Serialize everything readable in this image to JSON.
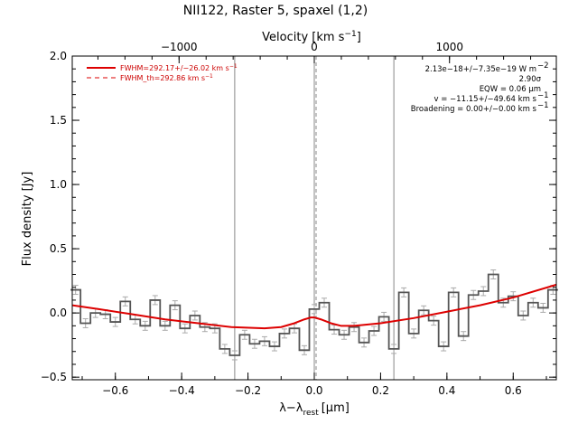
{
  "chart_data": {
    "type": "line",
    "title": "NII122, Raster 5, spaxel (1,2)",
    "xlabel": "λ−λ",
    "xlabel_sub": "rest",
    "xlabel_unit": "[μm]",
    "ylabel": "Flux density [Jy]",
    "top_xlabel": "Velocity [km s",
    "top_xlabel_sup": "−1",
    "top_xlabel_close": "]",
    "xlim": [
      -0.73,
      0.73
    ],
    "ylim": [
      -0.52,
      2.0
    ],
    "top_xlim": [
      -1790,
      1790
    ],
    "x_ticks": [
      -0.6,
      -0.4,
      -0.2,
      0.0,
      0.2,
      0.4,
      0.6
    ],
    "x_tick_labels": [
      "−0.6",
      "−0.4",
      "−0.2",
      "0.0",
      "0.2",
      "0.4",
      "0.6"
    ],
    "y_ticks": [
      -0.5,
      0.0,
      0.5,
      1.0,
      1.5,
      2.0
    ],
    "y_tick_labels": [
      "−0.5",
      "0.0",
      "0.5",
      "1.0",
      "1.5",
      "2.0"
    ],
    "top_ticks": [
      -1000,
      0,
      1000
    ],
    "top_tick_labels": [
      "−1000",
      "0",
      "1000"
    ],
    "vertical_lines": [
      -0.24,
      0.0,
      0.24
    ],
    "rest_line": 0.0,
    "grid": false,
    "legend_placement": "top-left",
    "series": [
      {
        "name": "FWHM=292.17+/−26.02 km s",
        "name_sup": "−1",
        "kind": "fit",
        "color": "#dd0000",
        "x": [
          -0.73,
          -0.65,
          -0.55,
          -0.45,
          -0.35,
          -0.25,
          -0.15,
          -0.1,
          -0.06,
          -0.03,
          -0.01,
          0.0,
          0.02,
          0.05,
          0.08,
          0.12,
          0.2,
          0.3,
          0.4,
          0.5,
          0.6,
          0.73
        ],
        "y": [
          0.06,
          0.03,
          -0.01,
          -0.05,
          -0.08,
          -0.11,
          -0.12,
          -0.11,
          -0.08,
          -0.05,
          -0.035,
          -0.035,
          -0.05,
          -0.08,
          -0.1,
          -0.1,
          -0.08,
          -0.04,
          0.01,
          0.06,
          0.12,
          0.22
        ]
      },
      {
        "name": "FWHM_th=292.86 km s",
        "name_sup": "−1",
        "kind": "reference",
        "color": "#dd0000",
        "dashed": true
      },
      {
        "name": "",
        "kind": "spectrum",
        "color": "#555555",
        "x": [
          -0.72,
          -0.69,
          -0.66,
          -0.63,
          -0.6,
          -0.57,
          -0.54,
          -0.51,
          -0.48,
          -0.45,
          -0.42,
          -0.39,
          -0.36,
          -0.33,
          -0.3,
          -0.27,
          -0.24,
          -0.21,
          -0.18,
          -0.15,
          -0.12,
          -0.09,
          -0.06,
          -0.03,
          0.0,
          0.03,
          0.06,
          0.09,
          0.12,
          0.15,
          0.18,
          0.21,
          0.24,
          0.27,
          0.3,
          0.33,
          0.36,
          0.39,
          0.42,
          0.45,
          0.48,
          0.51,
          0.54,
          0.57,
          0.6,
          0.63,
          0.66,
          0.69,
          0.72
        ],
        "y": [
          0.18,
          -0.08,
          0.0,
          -0.01,
          -0.07,
          0.09,
          -0.05,
          -0.1,
          0.1,
          -0.1,
          0.06,
          -0.12,
          -0.02,
          -0.11,
          -0.12,
          -0.28,
          -0.33,
          -0.17,
          -0.24,
          -0.22,
          -0.26,
          -0.16,
          -0.12,
          -0.29,
          0.03,
          0.08,
          -0.13,
          -0.17,
          -0.11,
          -0.23,
          -0.14,
          -0.03,
          -0.28,
          0.16,
          -0.16,
          0.02,
          -0.06,
          -0.26,
          0.16,
          -0.18,
          0.14,
          0.17,
          0.3,
          0.08,
          0.13,
          -0.02,
          0.08,
          0.04,
          0.18
        ]
      }
    ],
    "annotations": [
      "2.13e−18+/−7.35e−19 W m",
      "2.90σ",
      "EQW = 0.06 μm",
      "v = −11.15+/−49.64 km s",
      "Broadening = 0.00+/−0.00 km s"
    ],
    "annotation_sups": [
      "−2",
      "",
      "",
      "−1",
      "−1"
    ],
    "errorbar_color": "#aaaaaa",
    "axis_color": "#000000",
    "vline_color": "#888888"
  }
}
